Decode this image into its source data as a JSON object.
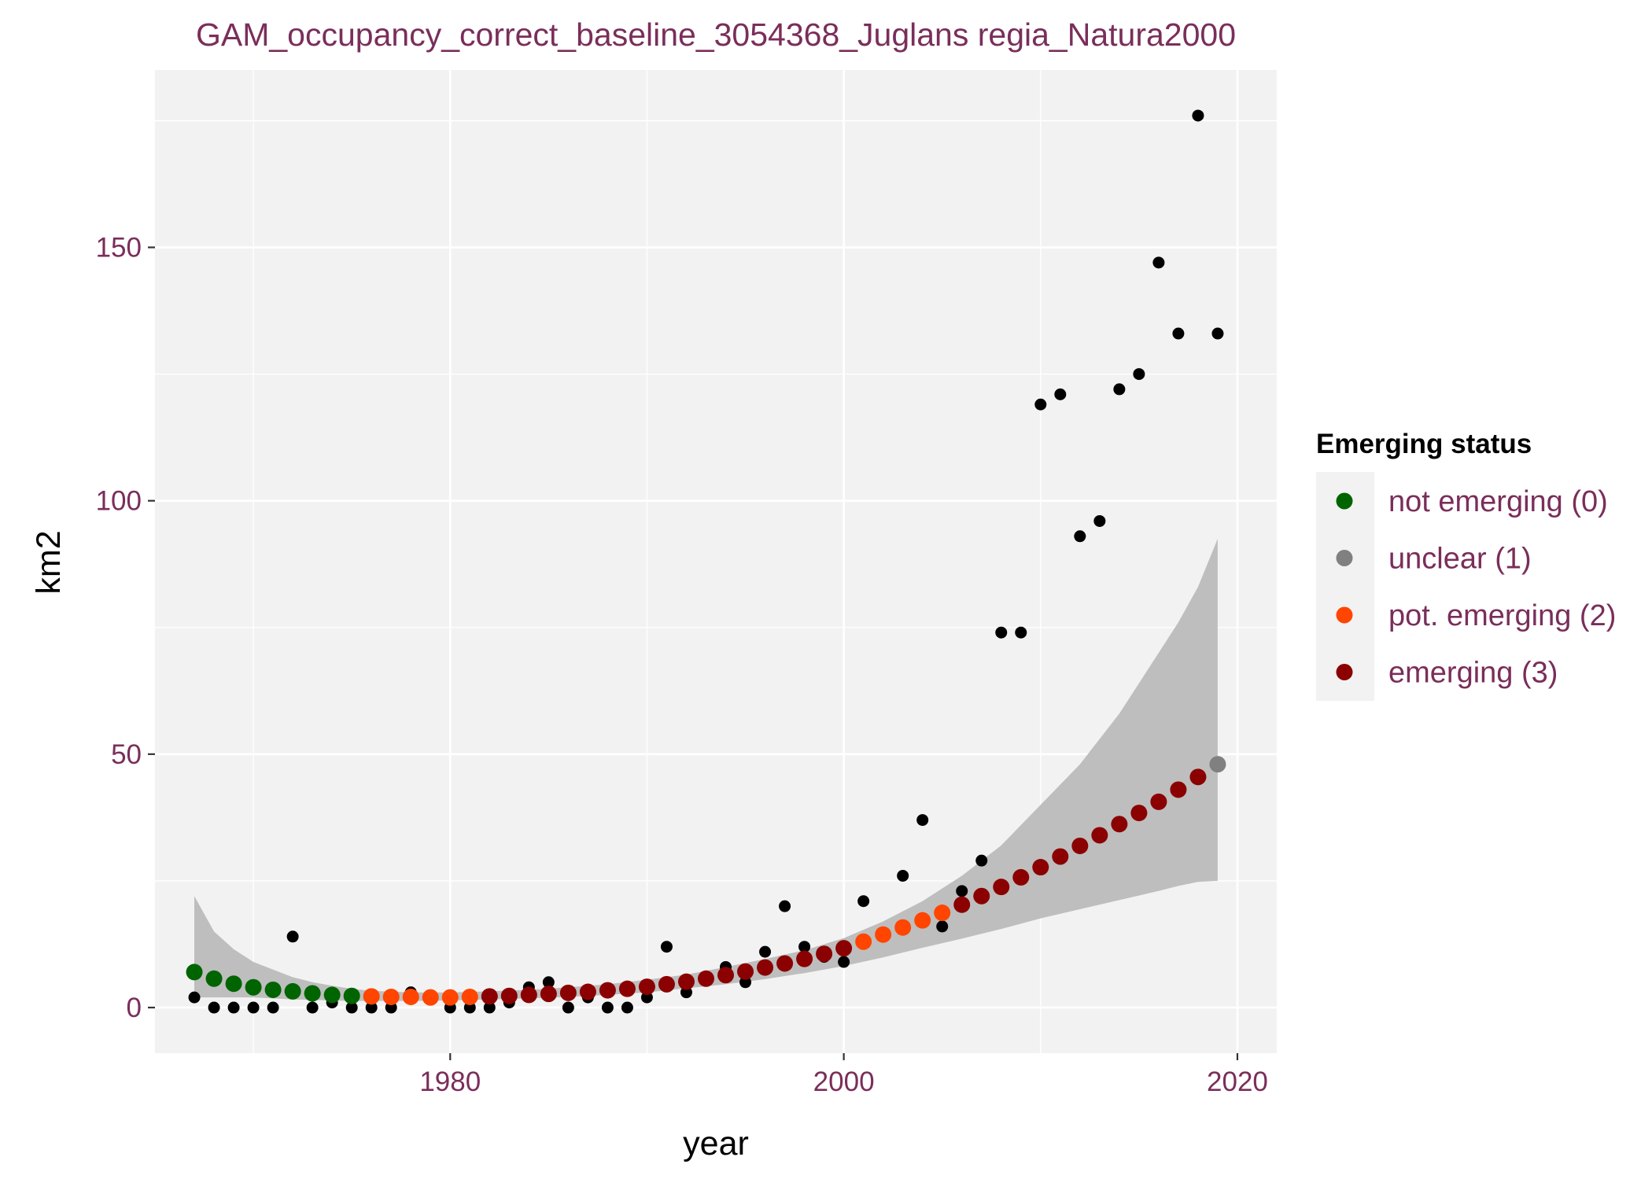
{
  "chart_data": {
    "type": "scatter",
    "title": "GAM_occupancy_correct_baseline_3054368_Juglans regia_Natura2000",
    "xlabel": "year",
    "ylabel": "km2",
    "xlim": [
      1965,
      2022
    ],
    "ylim": [
      -9,
      185
    ],
    "x_ticks": [
      1980,
      2000,
      2020
    ],
    "y_ticks": [
      0,
      50,
      100,
      150
    ],
    "grid": true,
    "legend": {
      "title": "Emerging status",
      "position": "right",
      "items": [
        {
          "label": "not emerging (0)",
          "color": "#006400"
        },
        {
          "label": "unclear (1)",
          "color": "#808080"
        },
        {
          "label": "pot. emerging (2)",
          "color": "#ff4500"
        },
        {
          "label": "emerging (3)",
          "color": "#8b0000"
        }
      ]
    },
    "observed": {
      "color": "#000000",
      "points": [
        [
          1967,
          2
        ],
        [
          1968,
          0
        ],
        [
          1969,
          0
        ],
        [
          1970,
          0
        ],
        [
          1971,
          0
        ],
        [
          1972,
          14
        ],
        [
          1973,
          0
        ],
        [
          1974,
          1
        ],
        [
          1975,
          0
        ],
        [
          1976,
          0
        ],
        [
          1977,
          0
        ],
        [
          1978,
          3
        ],
        [
          1979,
          2
        ],
        [
          1980,
          0
        ],
        [
          1981,
          0
        ],
        [
          1982,
          0
        ],
        [
          1983,
          1
        ],
        [
          1984,
          4
        ],
        [
          1985,
          5
        ],
        [
          1986,
          0
        ],
        [
          1987,
          2
        ],
        [
          1988,
          0
        ],
        [
          1989,
          0
        ],
        [
          1990,
          2
        ],
        [
          1991,
          12
        ],
        [
          1992,
          3
        ],
        [
          1993,
          6
        ],
        [
          1994,
          8
        ],
        [
          1995,
          5
        ],
        [
          1996,
          11
        ],
        [
          1997,
          20
        ],
        [
          1998,
          12
        ],
        [
          1999,
          10
        ],
        [
          2000,
          9
        ],
        [
          2001,
          21
        ],
        [
          2002,
          14
        ],
        [
          2003,
          26
        ],
        [
          2004,
          37
        ],
        [
          2005,
          16
        ],
        [
          2006,
          23
        ],
        [
          2007,
          29
        ],
        [
          2008,
          74
        ],
        [
          2009,
          74
        ],
        [
          2010,
          119
        ],
        [
          2011,
          121
        ],
        [
          2012,
          93
        ],
        [
          2013,
          96
        ],
        [
          2014,
          122
        ],
        [
          2015,
          125
        ],
        [
          2016,
          147
        ],
        [
          2017,
          133
        ],
        [
          2018,
          176
        ],
        [
          2019,
          133
        ]
      ]
    },
    "fitted": [
      {
        "x": 1967,
        "y": 7,
        "status": 0
      },
      {
        "x": 1968,
        "y": 5.7,
        "status": 0
      },
      {
        "x": 1969,
        "y": 4.7,
        "status": 0
      },
      {
        "x": 1970,
        "y": 4,
        "status": 0
      },
      {
        "x": 1971,
        "y": 3.5,
        "status": 0
      },
      {
        "x": 1972,
        "y": 3.2,
        "status": 0
      },
      {
        "x": 1973,
        "y": 2.8,
        "status": 0
      },
      {
        "x": 1974,
        "y": 2.5,
        "status": 0
      },
      {
        "x": 1975,
        "y": 2.3,
        "status": 0
      },
      {
        "x": 1976,
        "y": 2.2,
        "status": 2
      },
      {
        "x": 1977,
        "y": 2.1,
        "status": 2
      },
      {
        "x": 1978,
        "y": 2.1,
        "status": 2
      },
      {
        "x": 1979,
        "y": 2,
        "status": 2
      },
      {
        "x": 1980,
        "y": 2,
        "status": 2
      },
      {
        "x": 1981,
        "y": 2.1,
        "status": 2
      },
      {
        "x": 1982,
        "y": 2.2,
        "status": 3
      },
      {
        "x": 1983,
        "y": 2.3,
        "status": 3
      },
      {
        "x": 1984,
        "y": 2.5,
        "status": 3
      },
      {
        "x": 1985,
        "y": 2.7,
        "status": 3
      },
      {
        "x": 1986,
        "y": 2.9,
        "status": 3
      },
      {
        "x": 1987,
        "y": 3.1,
        "status": 3
      },
      {
        "x": 1988,
        "y": 3.4,
        "status": 3
      },
      {
        "x": 1989,
        "y": 3.7,
        "status": 3
      },
      {
        "x": 1990,
        "y": 4.1,
        "status": 3
      },
      {
        "x": 1991,
        "y": 4.6,
        "status": 3
      },
      {
        "x": 1992,
        "y": 5.1,
        "status": 3
      },
      {
        "x": 1993,
        "y": 5.7,
        "status": 3
      },
      {
        "x": 1994,
        "y": 6.4,
        "status": 3
      },
      {
        "x": 1995,
        "y": 7.1,
        "status": 3
      },
      {
        "x": 1996,
        "y": 7.9,
        "status": 3
      },
      {
        "x": 1997,
        "y": 8.7,
        "status": 3
      },
      {
        "x": 1998,
        "y": 9.6,
        "status": 3
      },
      {
        "x": 1999,
        "y": 10.6,
        "status": 3
      },
      {
        "x": 2000,
        "y": 11.7,
        "status": 3
      },
      {
        "x": 2001,
        "y": 13,
        "status": 2
      },
      {
        "x": 2002,
        "y": 14.4,
        "status": 2
      },
      {
        "x": 2003,
        "y": 15.8,
        "status": 2
      },
      {
        "x": 2004,
        "y": 17.2,
        "status": 2
      },
      {
        "x": 2005,
        "y": 18.7,
        "status": 2
      },
      {
        "x": 2006,
        "y": 20.3,
        "status": 3
      },
      {
        "x": 2007,
        "y": 22,
        "status": 3
      },
      {
        "x": 2008,
        "y": 23.8,
        "status": 3
      },
      {
        "x": 2009,
        "y": 25.7,
        "status": 3
      },
      {
        "x": 2010,
        "y": 27.7,
        "status": 3
      },
      {
        "x": 2011,
        "y": 29.8,
        "status": 3
      },
      {
        "x": 2012,
        "y": 31.9,
        "status": 3
      },
      {
        "x": 2013,
        "y": 34,
        "status": 3
      },
      {
        "x": 2014,
        "y": 36.2,
        "status": 3
      },
      {
        "x": 2015,
        "y": 38.4,
        "status": 3
      },
      {
        "x": 2016,
        "y": 40.6,
        "status": 3
      },
      {
        "x": 2017,
        "y": 43,
        "status": 3
      },
      {
        "x": 2018,
        "y": 45.5,
        "status": 3
      },
      {
        "x": 2019,
        "y": 48,
        "status": 1
      }
    ],
    "confidence_band": {
      "color": "#bebebe",
      "upper": [
        [
          1967,
          22
        ],
        [
          1968,
          15
        ],
        [
          1969,
          11.5
        ],
        [
          1970,
          9
        ],
        [
          1971,
          7.5
        ],
        [
          1972,
          6
        ],
        [
          1973,
          5
        ],
        [
          1974,
          4.3
        ],
        [
          1975,
          3.7
        ],
        [
          1976,
          3.3
        ],
        [
          1978,
          3
        ],
        [
          1980,
          3
        ],
        [
          1982,
          3.2
        ],
        [
          1984,
          3.5
        ],
        [
          1986,
          4
        ],
        [
          1988,
          4.6
        ],
        [
          1990,
          5.5
        ],
        [
          1992,
          6.5
        ],
        [
          1994,
          8
        ],
        [
          1996,
          9.6
        ],
        [
          1998,
          11.3
        ],
        [
          2000,
          13.7
        ],
        [
          2002,
          17
        ],
        [
          2004,
          21
        ],
        [
          2006,
          26
        ],
        [
          2008,
          32
        ],
        [
          2010,
          40
        ],
        [
          2012,
          48
        ],
        [
          2014,
          58
        ],
        [
          2016,
          70
        ],
        [
          2017,
          76
        ],
        [
          2018,
          83
        ],
        [
          2019,
          92.5
        ]
      ],
      "lower": [
        [
          1967,
          2
        ],
        [
          1968,
          2
        ],
        [
          1969,
          2
        ],
        [
          1970,
          2
        ],
        [
          1971,
          1.8
        ],
        [
          1972,
          1.6
        ],
        [
          1973,
          1.5
        ],
        [
          1974,
          1.4
        ],
        [
          1975,
          1.3
        ],
        [
          1976,
          1.3
        ],
        [
          1978,
          1.3
        ],
        [
          1980,
          1.4
        ],
        [
          1982,
          1.6
        ],
        [
          1984,
          1.8
        ],
        [
          1986,
          2.1
        ],
        [
          1988,
          2.5
        ],
        [
          1990,
          3
        ],
        [
          1992,
          3.8
        ],
        [
          1994,
          4.6
        ],
        [
          1996,
          5.6
        ],
        [
          1998,
          6.8
        ],
        [
          2000,
          8.2
        ],
        [
          2002,
          9.9
        ],
        [
          2004,
          11.8
        ],
        [
          2006,
          13.6
        ],
        [
          2008,
          15.5
        ],
        [
          2010,
          17.6
        ],
        [
          2012,
          19.4
        ],
        [
          2014,
          21.2
        ],
        [
          2016,
          23
        ],
        [
          2017,
          24
        ],
        [
          2018,
          24.8
        ],
        [
          2019,
          25
        ]
      ]
    }
  }
}
